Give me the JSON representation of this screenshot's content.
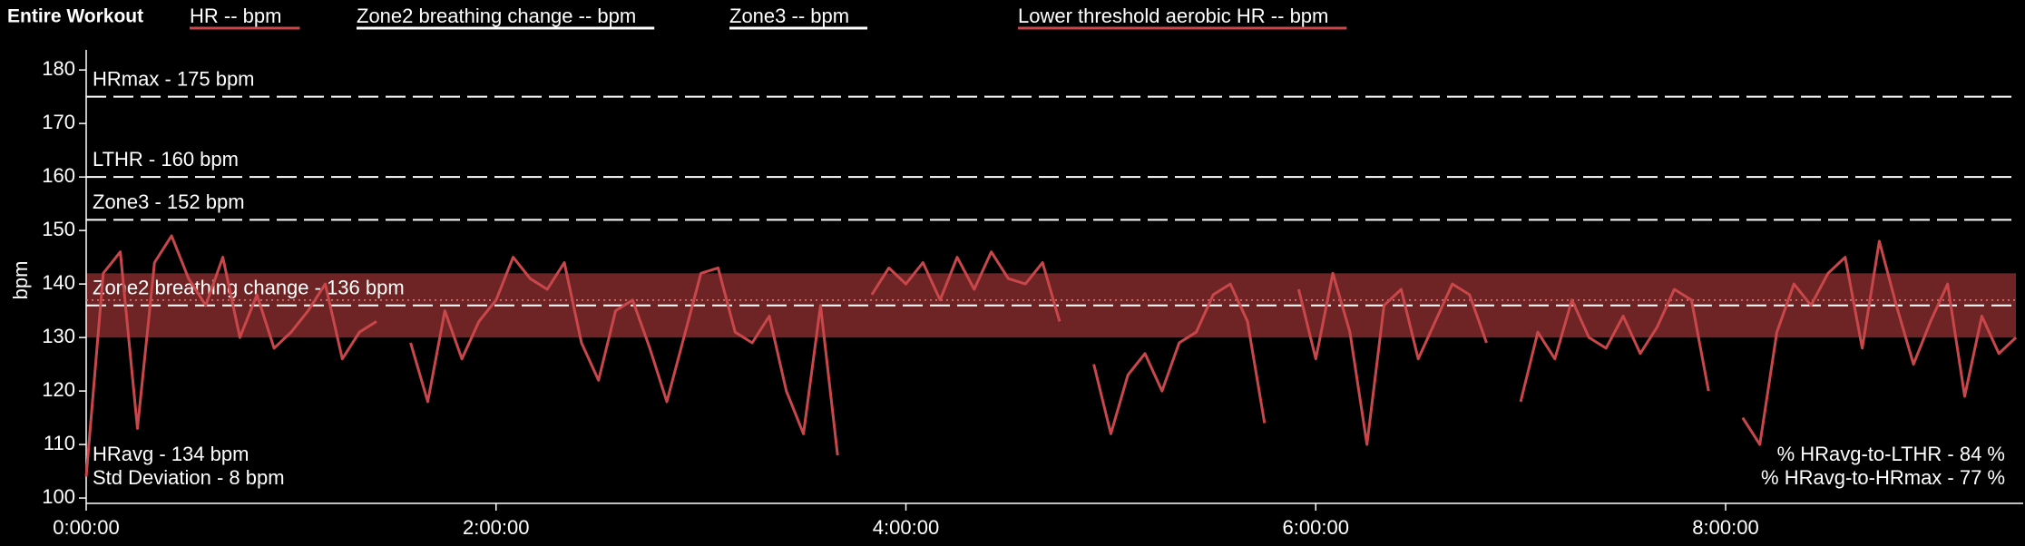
{
  "header": "Entire Workout",
  "chart_data": {
    "type": "line",
    "y_label": "bpm",
    "series": [
      {
        "name": "HR  -- bpm",
        "color": "#c9474a",
        "values": [
          104,
          142,
          146,
          113,
          144,
          149,
          141,
          136,
          145,
          130,
          138,
          128,
          131,
          135,
          140,
          126,
          131,
          133,
          null,
          129,
          118,
          135,
          126,
          133,
          137,
          145,
          141,
          139,
          144,
          129,
          122,
          135,
          137,
          128,
          118,
          130,
          142,
          143,
          131,
          129,
          134,
          120,
          112,
          136,
          108,
          null,
          138,
          143,
          140,
          144,
          137,
          145,
          139,
          146,
          141,
          140,
          144,
          133,
          null,
          125,
          112,
          123,
          127,
          120,
          129,
          131,
          138,
          140,
          133,
          114,
          null,
          139,
          126,
          142,
          131,
          110,
          136,
          139,
          126,
          133,
          140,
          138,
          129,
          null,
          118,
          131,
          126,
          137,
          130,
          128,
          134,
          127,
          132,
          139,
          137,
          120,
          null,
          115,
          110,
          131,
          140,
          136,
          142,
          145,
          128,
          148,
          136,
          125,
          133,
          140,
          119,
          134,
          127,
          130
        ]
      }
    ],
    "x": [
      0,
      300,
      600,
      900,
      1200,
      1500,
      1800,
      2100,
      2400,
      2700,
      3000,
      3300,
      3600,
      3900,
      4200,
      4500,
      4800,
      5100,
      5400,
      5700,
      6000,
      6300,
      6600,
      6900,
      7200,
      7500,
      7800,
      8100,
      8400,
      8700,
      9000,
      9300,
      9600,
      9900,
      10200,
      10500,
      10800,
      11100,
      11400,
      11700,
      12000,
      12300,
      12600,
      12900,
      13200,
      13500,
      13800,
      14100,
      14400,
      14700,
      15000,
      15300,
      15600,
      15900,
      16200,
      16500,
      16800,
      17100,
      17400,
      17700,
      18000,
      18300,
      18600,
      18900,
      19200,
      19500,
      19800,
      20100,
      20400,
      20700,
      21000,
      21300,
      21600,
      21900,
      22200,
      22500,
      22800,
      23100,
      23400,
      23700,
      24000,
      24300,
      24600,
      24900,
      25200,
      25500,
      25800,
      26100,
      26400,
      26700,
      27000,
      27300,
      27600,
      27900,
      28200,
      28500,
      28800,
      29100,
      29400,
      29700,
      30000,
      30300,
      30600,
      30900,
      31200,
      31500,
      31800,
      32100,
      32400,
      32700,
      33000,
      33300,
      33600,
      33900
    ],
    "legend_extra": [
      {
        "label": "Zone2 breathing change  -- bpm",
        "color": "#ffffff"
      },
      {
        "label": "Zone3  -- bpm",
        "color": "#ffffff"
      },
      {
        "label": "Lower threshold aerobic HR  -- bpm",
        "color": "#c9474a"
      }
    ],
    "band": {
      "range": [
        130,
        142
      ],
      "color": "#6e2424"
    },
    "dotted_lines": [
      137
    ],
    "reference_lines": [
      {
        "value": 175,
        "label": "HRmax - 175 bpm"
      },
      {
        "value": 160,
        "label": "LTHR - 160 bpm"
      },
      {
        "value": 152,
        "label": "Zone3 - 152 bpm"
      },
      {
        "value": 136,
        "label": "Zone2 breathing change - 136 bpm"
      }
    ],
    "annotations_left": [
      "HRavg - 134 bpm",
      "Std Deviation - 8 bpm"
    ],
    "annotations_right": [
      "% HRavg-to-LTHR - 84 %",
      "% HRavg-to-HRmax - 77 %"
    ],
    "xlim": [
      0,
      33900
    ],
    "xticks": [
      {
        "value": 0,
        "label": "0:00:00"
      },
      {
        "value": 7200,
        "label": "2:00:00"
      },
      {
        "value": 14400,
        "label": "4:00:00"
      },
      {
        "value": 21600,
        "label": "6:00:00"
      },
      {
        "value": 28800,
        "label": "8:00:00"
      }
    ],
    "ylim": [
      99,
      182.4
    ],
    "yticks": [
      100,
      110,
      120,
      130,
      140,
      150,
      160,
      170,
      180
    ]
  }
}
